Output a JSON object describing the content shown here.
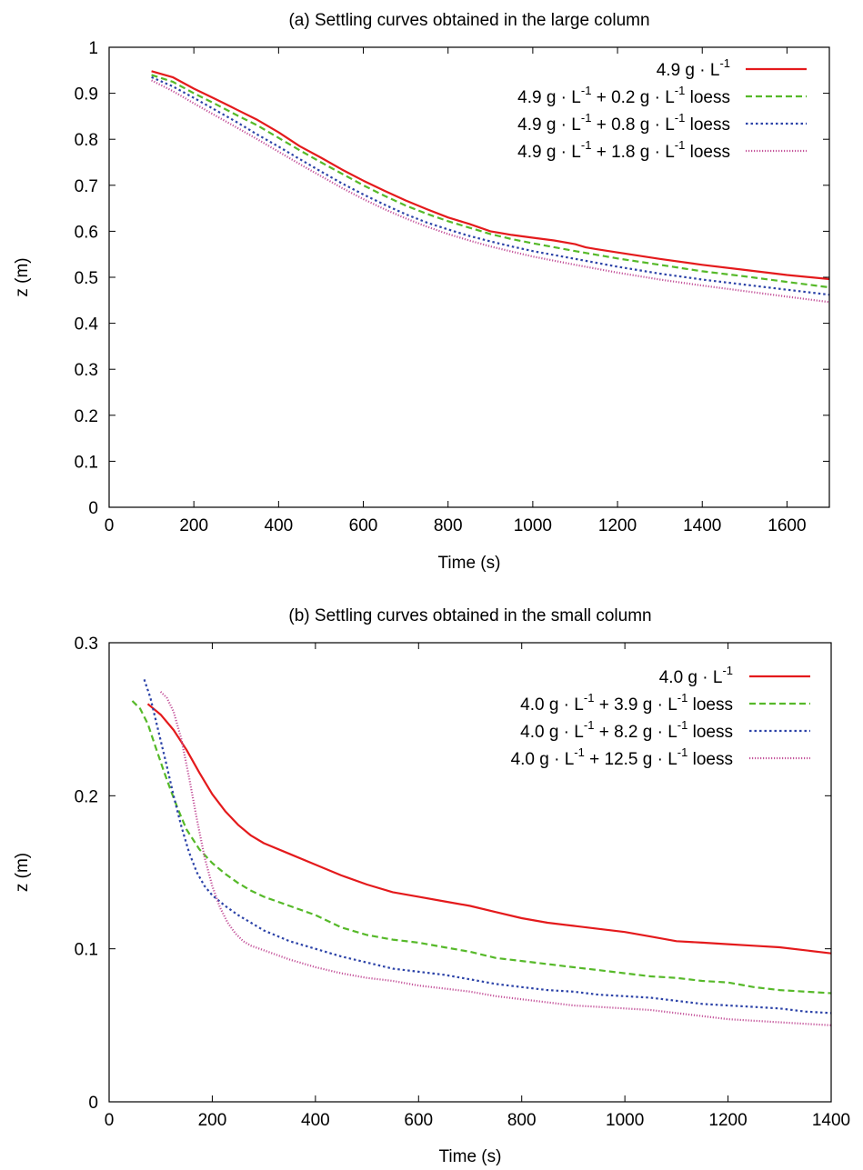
{
  "chart_data": [
    {
      "type": "line",
      "title": "(a) Settling curves obtained in the large column",
      "xlabel": "Time (s)",
      "ylabel": "z (m)",
      "xlim": [
        0,
        1700
      ],
      "ylim": [
        0,
        1
      ],
      "xticks": [
        0,
        200,
        400,
        600,
        800,
        1000,
        1200,
        1400,
        1600
      ],
      "yticks": [
        0,
        0.1,
        0.2,
        0.3,
        0.4,
        0.5,
        0.6,
        0.7,
        0.8,
        0.9,
        1
      ],
      "xtick_labels": [
        "0",
        "200",
        "400",
        "600",
        "800",
        "1000",
        "1200",
        "1400",
        "1600"
      ],
      "ytick_labels": [
        "0",
        "0.1",
        "0.2",
        "0.3",
        "0.4",
        "0.5",
        "0.6",
        "0.7",
        "0.8",
        "0.9",
        "1"
      ],
      "legend_position": "top-right",
      "series": [
        {
          "legend": [
            "4.9 g · L",
            "-1",
            ""
          ],
          "color": "#e41a1c",
          "dash": "solid",
          "x": [
            100,
            150,
            200,
            250,
            300,
            350,
            400,
            450,
            500,
            550,
            600,
            650,
            700,
            750,
            800,
            850,
            900,
            950,
            1000,
            1050,
            1100,
            1125,
            1150,
            1200,
            1300,
            1400,
            1500,
            1600,
            1700
          ],
          "y": [
            0.948,
            0.935,
            0.91,
            0.888,
            0.865,
            0.842,
            0.815,
            0.785,
            0.76,
            0.734,
            0.71,
            0.688,
            0.667,
            0.648,
            0.63,
            0.616,
            0.6,
            0.592,
            0.586,
            0.58,
            0.572,
            0.565,
            0.561,
            0.554,
            0.54,
            0.527,
            0.516,
            0.505,
            0.496
          ]
        },
        {
          "legend": [
            "4.9 g · L",
            "-1",
            " + 0.2 g · L",
            "-1",
            " loess"
          ],
          "color": "#56b929",
          "dash": "7,4",
          "x": [
            100,
            150,
            200,
            250,
            300,
            350,
            400,
            450,
            500,
            550,
            600,
            650,
            700,
            750,
            800,
            850,
            900,
            950,
            1000,
            1100,
            1200,
            1300,
            1400,
            1500,
            1600,
            1700
          ],
          "y": [
            0.94,
            0.925,
            0.9,
            0.877,
            0.853,
            0.83,
            0.803,
            0.776,
            0.75,
            0.725,
            0.7,
            0.677,
            0.656,
            0.638,
            0.622,
            0.608,
            0.594,
            0.583,
            0.574,
            0.557,
            0.541,
            0.527,
            0.513,
            0.502,
            0.49,
            0.478
          ]
        },
        {
          "legend": [
            "4.9 g · L",
            "-1",
            " + 0.8 g · L",
            "-1",
            " loess"
          ],
          "color": "#2c43a8",
          "dash": "2.5,3",
          "x": [
            100,
            150,
            200,
            250,
            300,
            350,
            400,
            450,
            500,
            550,
            600,
            650,
            700,
            750,
            800,
            850,
            900,
            950,
            1000,
            1100,
            1200,
            1300,
            1400,
            1500,
            1600,
            1700
          ],
          "y": [
            0.935,
            0.915,
            0.89,
            0.864,
            0.838,
            0.81,
            0.784,
            0.757,
            0.73,
            0.704,
            0.68,
            0.658,
            0.637,
            0.619,
            0.604,
            0.59,
            0.578,
            0.567,
            0.557,
            0.54,
            0.523,
            0.508,
            0.495,
            0.484,
            0.473,
            0.462
          ]
        },
        {
          "legend": [
            "4.9 g · L",
            "-1",
            " + 1.8 g · L",
            "-1",
            " loess"
          ],
          "color": "#c4539a",
          "dash": "1.2,1.8",
          "x": [
            100,
            150,
            200,
            250,
            300,
            350,
            400,
            450,
            500,
            550,
            600,
            650,
            700,
            750,
            800,
            850,
            900,
            950,
            1000,
            1100,
            1200,
            1300,
            1400,
            1500,
            1600,
            1700
          ],
          "y": [
            0.928,
            0.905,
            0.878,
            0.852,
            0.826,
            0.8,
            0.773,
            0.746,
            0.72,
            0.694,
            0.67,
            0.648,
            0.628,
            0.61,
            0.594,
            0.58,
            0.567,
            0.556,
            0.545,
            0.527,
            0.51,
            0.495,
            0.482,
            0.47,
            0.458,
            0.446
          ]
        }
      ]
    },
    {
      "type": "line",
      "title": "(b) Settling curves obtained in the small column",
      "xlabel": "Time (s)",
      "ylabel": "z (m)",
      "xlim": [
        0,
        1400
      ],
      "ylim": [
        0,
        0.3
      ],
      "xticks": [
        0,
        200,
        400,
        600,
        800,
        1000,
        1200,
        1400
      ],
      "yticks": [
        0,
        0.1,
        0.2,
        0.3
      ],
      "xtick_labels": [
        "0",
        "200",
        "400",
        "600",
        "800",
        "1000",
        "1200",
        "1400"
      ],
      "ytick_labels": [
        "0",
        "0.1",
        "0.2",
        "0.3"
      ],
      "legend_position": "top-right",
      "series": [
        {
          "legend": [
            "4.0 g · L",
            "-1",
            ""
          ],
          "color": "#e41a1c",
          "dash": "solid",
          "x": [
            75,
            100,
            125,
            150,
            175,
            200,
            225,
            250,
            275,
            300,
            350,
            400,
            450,
            500,
            550,
            600,
            650,
            700,
            750,
            800,
            850,
            900,
            950,
            1000,
            1050,
            1100,
            1150,
            1200,
            1250,
            1300,
            1350,
            1400
          ],
          "y": [
            0.26,
            0.253,
            0.243,
            0.23,
            0.215,
            0.201,
            0.19,
            0.181,
            0.174,
            0.169,
            0.162,
            0.155,
            0.148,
            0.142,
            0.137,
            0.134,
            0.131,
            0.128,
            0.124,
            0.12,
            0.117,
            0.115,
            0.113,
            0.111,
            0.108,
            0.105,
            0.104,
            0.103,
            0.102,
            0.101,
            0.099,
            0.097
          ]
        },
        {
          "legend": [
            "4.0 g · L",
            "-1",
            " + 3.9 g · L",
            "-1",
            " loess"
          ],
          "color": "#56b929",
          "dash": "7,4",
          "x": [
            45,
            60,
            75,
            90,
            105,
            120,
            135,
            150,
            175,
            200,
            225,
            250,
            275,
            300,
            350,
            400,
            450,
            500,
            550,
            600,
            650,
            700,
            750,
            800,
            850,
            900,
            950,
            1000,
            1050,
            1100,
            1150,
            1200,
            1250,
            1300,
            1350,
            1400
          ],
          "y": [
            0.262,
            0.257,
            0.247,
            0.232,
            0.217,
            0.203,
            0.19,
            0.178,
            0.165,
            0.156,
            0.149,
            0.143,
            0.138,
            0.134,
            0.128,
            0.122,
            0.114,
            0.109,
            0.106,
            0.104,
            0.101,
            0.098,
            0.094,
            0.092,
            0.09,
            0.088,
            0.086,
            0.084,
            0.082,
            0.081,
            0.079,
            0.078,
            0.075,
            0.073,
            0.072,
            0.071
          ]
        },
        {
          "legend": [
            "4.0 g · L",
            "-1",
            " + 8.2 g · L",
            "-1",
            " loess"
          ],
          "color": "#2c43a8",
          "dash": "2.5,3",
          "x": [
            68,
            80,
            95,
            110,
            125,
            140,
            155,
            170,
            185,
            200,
            225,
            250,
            275,
            300,
            350,
            400,
            450,
            500,
            550,
            600,
            650,
            700,
            750,
            800,
            850,
            900,
            950,
            1000,
            1050,
            1100,
            1150,
            1200,
            1250,
            1300,
            1350,
            1400
          ],
          "y": [
            0.276,
            0.264,
            0.243,
            0.222,
            0.2,
            0.18,
            0.163,
            0.15,
            0.141,
            0.135,
            0.128,
            0.122,
            0.117,
            0.112,
            0.105,
            0.1,
            0.095,
            0.091,
            0.087,
            0.085,
            0.083,
            0.08,
            0.077,
            0.075,
            0.073,
            0.072,
            0.07,
            0.069,
            0.068,
            0.066,
            0.064,
            0.063,
            0.062,
            0.061,
            0.059,
            0.058
          ]
        },
        {
          "legend": [
            "4.0 g · L",
            "-1",
            " + 12.5 g · L",
            "-1",
            " loess"
          ],
          "color": "#c4539a",
          "dash": "1.2,1.8",
          "x": [
            100,
            112,
            125,
            140,
            155,
            170,
            185,
            200,
            215,
            230,
            245,
            260,
            275,
            300,
            350,
            400,
            450,
            500,
            550,
            600,
            650,
            700,
            750,
            800,
            850,
            900,
            950,
            1000,
            1050,
            1100,
            1150,
            1200,
            1250,
            1300,
            1350,
            1400
          ],
          "y": [
            0.268,
            0.264,
            0.255,
            0.237,
            0.212,
            0.185,
            0.16,
            0.141,
            0.127,
            0.117,
            0.11,
            0.105,
            0.102,
            0.099,
            0.093,
            0.088,
            0.084,
            0.081,
            0.079,
            0.076,
            0.074,
            0.072,
            0.069,
            0.067,
            0.065,
            0.063,
            0.062,
            0.061,
            0.06,
            0.058,
            0.056,
            0.054,
            0.053,
            0.052,
            0.051,
            0.05
          ]
        }
      ]
    }
  ]
}
